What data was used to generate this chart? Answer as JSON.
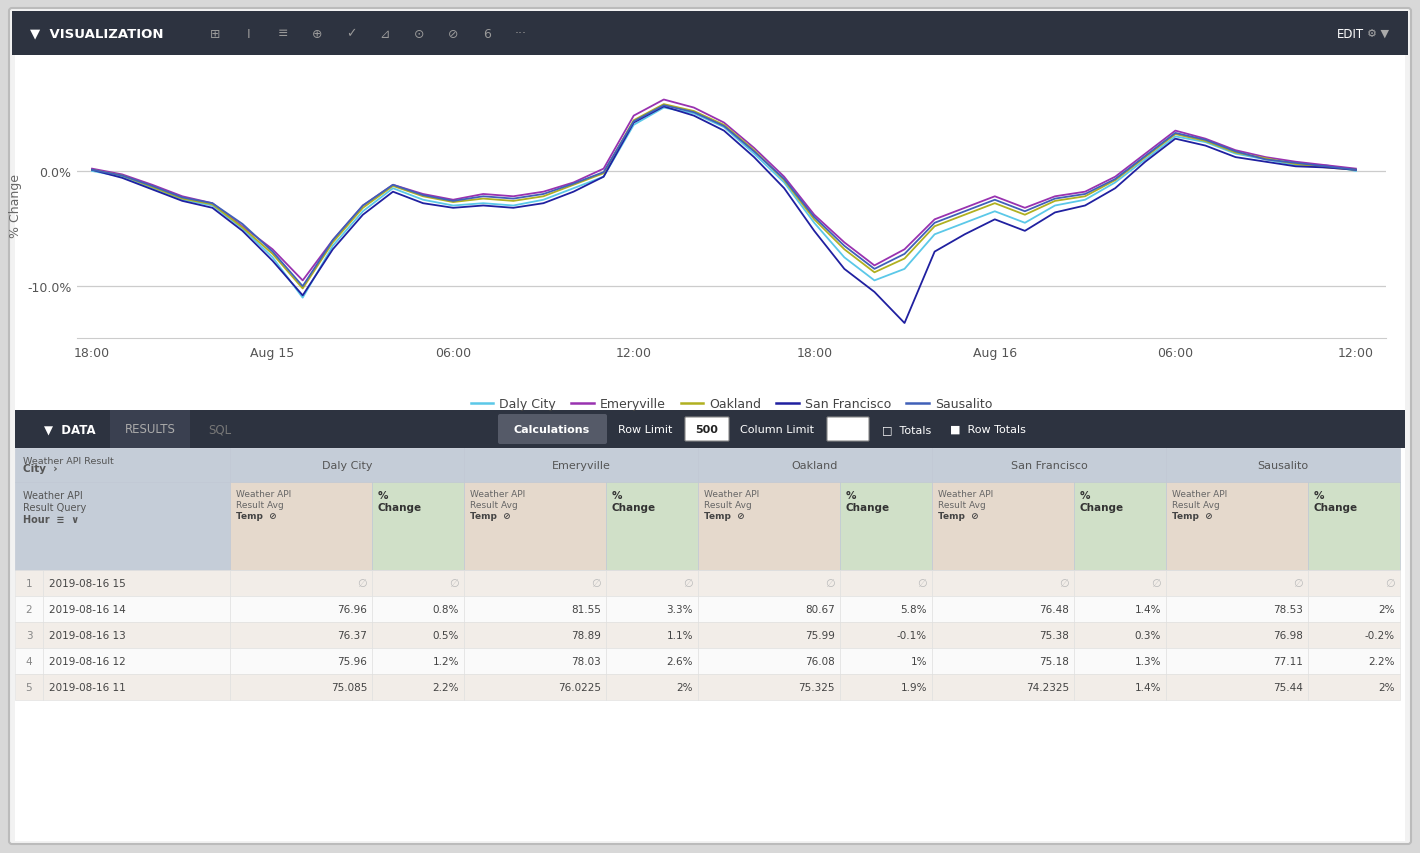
{
  "title_bar": "VISUALIZATION",
  "data_bar": "DATA",
  "chart": {
    "ylabel": "% Change",
    "yticks": [
      "-10.0%",
      "0.0%"
    ],
    "ytick_vals": [
      -0.1,
      0.0
    ],
    "xlabels": [
      "18:00",
      "Aug 15",
      "06:00",
      "12:00",
      "18:00",
      "Aug 16",
      "06:00",
      "12:00"
    ],
    "background": "#ffffff",
    "grid_color": "#cccccc",
    "cities": [
      "Daly City",
      "Emeryville",
      "Oakland",
      "San Francisco",
      "Sausalito"
    ],
    "colors": [
      "#5bc8e8",
      "#9932b0",
      "#b0b020",
      "#2020a0",
      "#4060b8"
    ],
    "legend_colors": [
      "#5bc8e8",
      "#9932b0",
      "#b0b020",
      "#2020a0",
      "#4060b8"
    ]
  },
  "table": {
    "header_bg": "#2d3340",
    "header_fg": "#ffffff",
    "tab_active_bg": "#2d3340",
    "tab_inactive_bg": "#3d4555",
    "city_header_bg": "#c5cdd8",
    "avg_temp_bg": "#e5d9cc",
    "pct_change_bg": "#d0e0c8",
    "row_odd_bg": "#f2ede8",
    "row_even_bg": "#fafafa",
    "col_header_bg": "#c5cdd8",
    "cities": [
      "Daly City",
      "Emeryville",
      "Oakland",
      "San Francisco",
      "Sausalito"
    ],
    "rows": [
      {
        "num": "1",
        "date": "2019-08-16 15",
        "vals": [
          null,
          null,
          null,
          null,
          null,
          null,
          null,
          null,
          null,
          null
        ]
      },
      {
        "num": "2",
        "date": "2019-08-16 14",
        "vals": [
          76.96,
          0.8,
          81.55,
          3.3,
          80.67,
          5.8,
          76.48,
          1.4,
          78.53,
          2.0
        ]
      },
      {
        "num": "3",
        "date": "2019-08-16 13",
        "vals": [
          76.37,
          0.5,
          78.89,
          1.1,
          75.99,
          -0.1,
          75.38,
          0.3,
          76.98,
          -0.2
        ]
      },
      {
        "num": "4",
        "date": "2019-08-16 12",
        "vals": [
          75.96,
          1.2,
          78.03,
          2.6,
          76.08,
          1.0,
          75.18,
          1.3,
          77.11,
          2.2
        ]
      },
      {
        "num": "5",
        "date": "2019-08-16 11",
        "vals": [
          75.085,
          2.2,
          76.0225,
          2.0,
          75.325,
          1.9,
          74.2325,
          1.4,
          75.44,
          2.0
        ]
      }
    ]
  },
  "chart_data": {
    "Daly City": [
      0.0,
      -0.005,
      -0.015,
      -0.025,
      -0.03,
      -0.05,
      -0.075,
      -0.11,
      -0.065,
      -0.035,
      -0.015,
      -0.025,
      -0.03,
      -0.028,
      -0.03,
      -0.025,
      -0.015,
      -0.005,
      0.04,
      0.055,
      0.05,
      0.038,
      0.015,
      -0.01,
      -0.045,
      -0.075,
      -0.095,
      -0.085,
      -0.055,
      -0.045,
      -0.035,
      -0.045,
      -0.03,
      -0.025,
      -0.01,
      0.01,
      0.03,
      0.025,
      0.015,
      0.01,
      0.005,
      0.005,
      0.0
    ],
    "Emeryville": [
      0.002,
      -0.003,
      -0.012,
      -0.022,
      -0.028,
      -0.048,
      -0.068,
      -0.095,
      -0.06,
      -0.03,
      -0.012,
      -0.02,
      -0.025,
      -0.02,
      -0.022,
      -0.018,
      -0.01,
      0.002,
      0.048,
      0.062,
      0.055,
      0.042,
      0.02,
      -0.005,
      -0.038,
      -0.062,
      -0.082,
      -0.068,
      -0.042,
      -0.032,
      -0.022,
      -0.032,
      -0.022,
      -0.018,
      -0.005,
      0.015,
      0.035,
      0.028,
      0.018,
      0.012,
      0.008,
      0.005,
      0.002
    ],
    "Oakland": [
      0.001,
      -0.004,
      -0.014,
      -0.024,
      -0.029,
      -0.049,
      -0.072,
      -0.102,
      -0.062,
      -0.032,
      -0.013,
      -0.022,
      -0.027,
      -0.024,
      -0.026,
      -0.022,
      -0.012,
      -0.002,
      0.044,
      0.058,
      0.052,
      0.04,
      0.018,
      -0.008,
      -0.042,
      -0.068,
      -0.088,
      -0.076,
      -0.048,
      -0.038,
      -0.028,
      -0.038,
      -0.026,
      -0.022,
      -0.008,
      0.012,
      0.032,
      0.026,
      0.016,
      0.011,
      0.006,
      0.003,
      0.001
    ],
    "San Francisco": [
      0.001,
      -0.006,
      -0.016,
      -0.026,
      -0.032,
      -0.052,
      -0.078,
      -0.108,
      -0.068,
      -0.038,
      -0.018,
      -0.028,
      -0.032,
      -0.03,
      -0.032,
      -0.028,
      -0.018,
      -0.005,
      0.042,
      0.056,
      0.048,
      0.035,
      0.012,
      -0.015,
      -0.052,
      -0.085,
      -0.105,
      -0.132,
      -0.07,
      -0.055,
      -0.042,
      -0.052,
      -0.036,
      -0.03,
      -0.015,
      0.008,
      0.028,
      0.022,
      0.012,
      0.008,
      0.004,
      0.003,
      0.001
    ],
    "Sausalito": [
      0.001,
      -0.004,
      -0.013,
      -0.023,
      -0.028,
      -0.046,
      -0.07,
      -0.1,
      -0.06,
      -0.03,
      -0.012,
      -0.021,
      -0.026,
      -0.022,
      -0.024,
      -0.02,
      -0.011,
      -0.001,
      0.043,
      0.057,
      0.051,
      0.039,
      0.017,
      -0.007,
      -0.04,
      -0.065,
      -0.085,
      -0.072,
      -0.045,
      -0.035,
      -0.025,
      -0.035,
      -0.024,
      -0.02,
      -0.007,
      0.013,
      0.033,
      0.027,
      0.017,
      0.01,
      0.007,
      0.004,
      0.001
    ]
  }
}
